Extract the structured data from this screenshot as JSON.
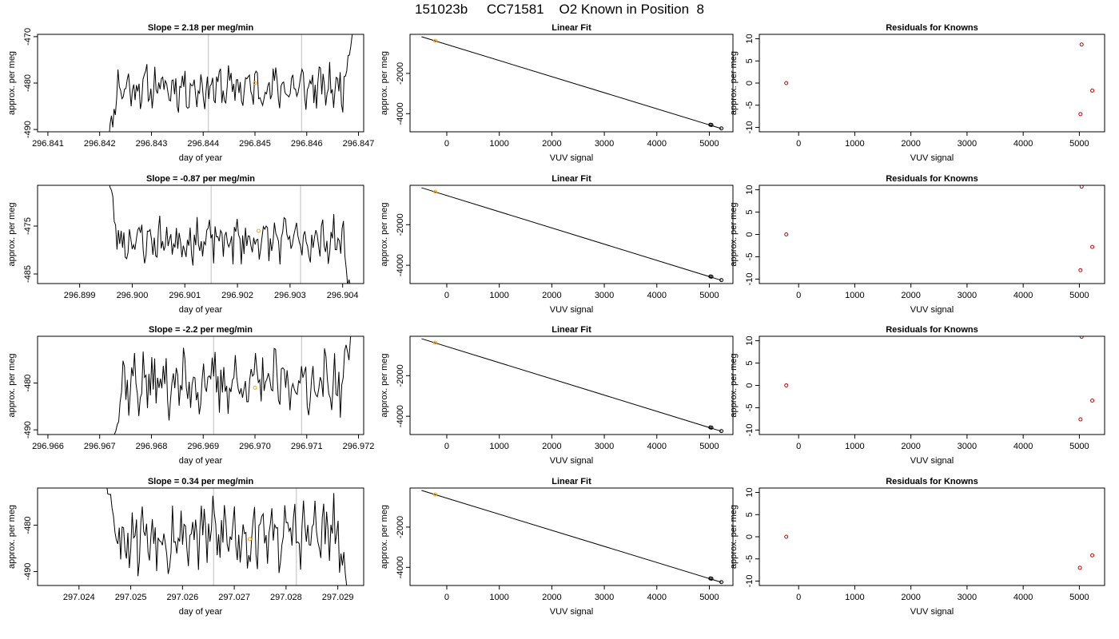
{
  "header": {
    "title": "151023b     CC71581    O2 Known in Position  8"
  },
  "chart_data": [
    {
      "type": "line",
      "title": "Slope =  2.18  per meg/min",
      "xlabel": "day of year",
      "ylabel": "approx. per meg",
      "xlim": [
        296.8408,
        296.8471
      ],
      "ylim": [
        -490.5,
        -469.5
      ],
      "xticks": [
        "296.841",
        "296.842",
        "296.843",
        "296.844",
        "296.845",
        "296.846",
        "296.847"
      ],
      "yticks": [
        "-470",
        "-480",
        "-490"
      ],
      "vlines": [
        296.8441,
        296.8459
      ],
      "marker": {
        "x": 296.845,
        "y": -480
      },
      "series_shape": {
        "x_start": 296.8421,
        "x_end": 296.8469,
        "n": 190,
        "base": -481,
        "amp": 3.5,
        "start_y": -497,
        "end_y": -468,
        "seed": 11
      },
      "colors": {
        "line": "#000000",
        "marker": "#ffa500",
        "vline": "#bebebe"
      }
    },
    {
      "type": "scatter",
      "title": "Linear Fit",
      "xlabel": "VUV signal",
      "ylabel": "approx. per meg",
      "xlim": [
        -700,
        5450
      ],
      "ylim": [
        -4900,
        -60
      ],
      "xticks": [
        "0",
        "1000",
        "2000",
        "3000",
        "4000",
        "5000"
      ],
      "yticks": [
        "-2000",
        "-4000"
      ],
      "points": [
        [
          -220,
          -380
        ],
        [
          5020,
          -4550
        ],
        [
          5040,
          -4560
        ],
        [
          5230,
          -4730
        ]
      ],
      "fit_line": [
        [
          -480,
          -180
        ],
        [
          5230,
          -4740
        ]
      ],
      "colors": {
        "line": "#000000",
        "marker": "#ffa500",
        "points": "#000000"
      }
    },
    {
      "type": "scatter",
      "title": "Residuals for Knowns",
      "xlabel": "VUV signal",
      "ylabel": "approx. per meg",
      "xlim": [
        -700,
        5450
      ],
      "ylim": [
        -11,
        11
      ],
      "xticks": [
        "0",
        "1000",
        "2000",
        "3000",
        "4000",
        "5000"
      ],
      "yticks": [
        "10",
        "5",
        "0",
        "-5",
        "-10"
      ],
      "points": [
        [
          -220,
          0
        ],
        [
          5040,
          8.7
        ],
        [
          5020,
          -7.0
        ],
        [
          5230,
          -1.7
        ]
      ],
      "colors": {
        "points": "#cc0000"
      }
    },
    {
      "type": "line",
      "title": "Slope =  -0.87  per meg/min",
      "xlabel": "day of year",
      "ylabel": "approx. per meg",
      "xlim": [
        296.8982,
        296.9044
      ],
      "ylim": [
        -487,
        -466.5
      ],
      "xticks": [
        "296.899",
        "296.900",
        "296.901",
        "296.902",
        "296.903",
        "296.904"
      ],
      "yticks": [
        "-475",
        "-485"
      ],
      "vlines": [
        296.9015,
        296.9032
      ],
      "marker": {
        "x": 296.9024,
        "y": -476
      },
      "series_shape": {
        "x_start": 296.8995,
        "x_end": 296.9042,
        "n": 180,
        "base": -478,
        "amp": 3.5,
        "start_y": -462,
        "end_y": -492,
        "seed": 23
      },
      "colors": {
        "line": "#000000",
        "marker": "#ffa500",
        "vline": "#bebebe"
      }
    },
    {
      "type": "scatter",
      "title": "Linear Fit",
      "xlabel": "VUV signal",
      "ylabel": "approx. per meg",
      "xlim": [
        -700,
        5450
      ],
      "ylim": [
        -4900,
        -60
      ],
      "xticks": [
        "0",
        "1000",
        "2000",
        "3000",
        "4000",
        "5000"
      ],
      "yticks": [
        "-2000",
        "-4000"
      ],
      "points": [
        [
          -220,
          -380
        ],
        [
          5020,
          -4550
        ],
        [
          5040,
          -4560
        ],
        [
          5230,
          -4730
        ]
      ],
      "fit_line": [
        [
          -480,
          -180
        ],
        [
          5230,
          -4740
        ]
      ],
      "colors": {
        "line": "#000000",
        "marker": "#ffa500",
        "points": "#000000"
      }
    },
    {
      "type": "scatter",
      "title": "Residuals for Knowns",
      "xlabel": "VUV signal",
      "ylabel": "approx. per meg",
      "xlim": [
        -700,
        5450
      ],
      "ylim": [
        -11,
        11
      ],
      "xticks": [
        "0",
        "1000",
        "2000",
        "3000",
        "4000",
        "5000"
      ],
      "yticks": [
        "10",
        "5",
        "0",
        "-5",
        "-10"
      ],
      "points": [
        [
          -220,
          0
        ],
        [
          5040,
          10.7
        ],
        [
          5020,
          -8.0
        ],
        [
          5230,
          -2.8
        ]
      ],
      "colors": {
        "points": "#cc0000"
      }
    },
    {
      "type": "line",
      "title": "Slope =  -2.2  per meg/min",
      "xlabel": "day of year",
      "ylabel": "approx. per meg",
      "xlim": [
        296.9658,
        296.9721
      ],
      "ylim": [
        -491,
        -470
      ],
      "xticks": [
        "296.966",
        "296.967",
        "296.968",
        "296.969",
        "296.970",
        "296.971",
        "296.972"
      ],
      "yticks": [
        "-480",
        "-490"
      ],
      "vlines": [
        296.9692,
        296.9709
      ],
      "marker": {
        "x": 296.97,
        "y": -481
      },
      "series_shape": {
        "x_start": 296.9672,
        "x_end": 296.9719,
        "n": 170,
        "base": -480,
        "amp": 5,
        "start_y": -496,
        "end_y": -466,
        "seed": 37
      },
      "colors": {
        "line": "#000000",
        "marker": "#ffa500",
        "vline": "#bebebe"
      }
    },
    {
      "type": "scatter",
      "title": "Linear Fit",
      "xlabel": "VUV signal",
      "ylabel": "approx. per meg",
      "xlim": [
        -700,
        5450
      ],
      "ylim": [
        -4900,
        -60
      ],
      "xticks": [
        "0",
        "1000",
        "2000",
        "3000",
        "4000",
        "5000"
      ],
      "yticks": [
        "-2000",
        "-4000"
      ],
      "points": [
        [
          -220,
          -380
        ],
        [
          5020,
          -4550
        ],
        [
          5040,
          -4560
        ],
        [
          5230,
          -4730
        ]
      ],
      "fit_line": [
        [
          -480,
          -180
        ],
        [
          5230,
          -4740
        ]
      ],
      "colors": {
        "line": "#000000",
        "marker": "#ffa500",
        "points": "#000000"
      }
    },
    {
      "type": "scatter",
      "title": "Residuals for Knowns",
      "xlabel": "VUV signal",
      "ylabel": "approx. per meg",
      "xlim": [
        -700,
        5450
      ],
      "ylim": [
        -11,
        11
      ],
      "xticks": [
        "0",
        "1000",
        "2000",
        "3000",
        "4000",
        "5000"
      ],
      "yticks": [
        "10",
        "5",
        "0",
        "-5",
        "-10"
      ],
      "points": [
        [
          -220,
          0
        ],
        [
          5040,
          10.9
        ],
        [
          5020,
          -7.6
        ],
        [
          5230,
          -3.4
        ]
      ],
      "colors": {
        "points": "#cc0000"
      }
    },
    {
      "type": "line",
      "title": "Slope =  0.34  per meg/min",
      "xlabel": "day of year",
      "ylabel": "approx. per meg",
      "xlim": [
        297.0232,
        297.0295
      ],
      "ylim": [
        -493,
        -472
      ],
      "xticks": [
        "297.024",
        "297.025",
        "297.026",
        "297.027",
        "297.028",
        "297.029"
      ],
      "yticks": [
        "-480",
        "-490"
      ],
      "vlines": [
        297.0266,
        297.0282
      ],
      "marker": {
        "x": 297.0273,
        "y": -483
      },
      "series_shape": {
        "x_start": 297.0245,
        "x_end": 297.0292,
        "n": 170,
        "base": -482,
        "amp": 6,
        "start_y": -468,
        "end_y": -496,
        "seed": 53
      },
      "colors": {
        "line": "#000000",
        "marker": "#ffa500",
        "vline": "#bebebe"
      }
    },
    {
      "type": "scatter",
      "title": "Linear Fit",
      "xlabel": "VUV signal",
      "ylabel": "approx. per meg",
      "xlim": [
        -700,
        5450
      ],
      "ylim": [
        -4900,
        -60
      ],
      "xticks": [
        "0",
        "1000",
        "2000",
        "3000",
        "4000",
        "5000"
      ],
      "yticks": [
        "-2000",
        "-4000"
      ],
      "points": [
        [
          -220,
          -380
        ],
        [
          5020,
          -4550
        ],
        [
          5040,
          -4560
        ],
        [
          5230,
          -4730
        ]
      ],
      "fit_line": [
        [
          -480,
          -180
        ],
        [
          5230,
          -4740
        ]
      ],
      "colors": {
        "line": "#000000",
        "marker": "#ffa500",
        "points": "#000000"
      }
    },
    {
      "type": "scatter",
      "title": "Residuals for Knowns",
      "xlabel": "VUV signal",
      "ylabel": "approx. per meg",
      "xlim": [
        -700,
        5450
      ],
      "ylim": [
        -11,
        11
      ],
      "xticks": [
        "0",
        "1000",
        "2000",
        "3000",
        "4000",
        "5000"
      ],
      "yticks": [
        "10",
        "5",
        "0",
        "-5",
        "-10"
      ],
      "points": [
        [
          -220,
          0
        ],
        [
          5010,
          -7.0
        ],
        [
          5230,
          -4.2
        ]
      ],
      "colors": {
        "points": "#cc0000"
      }
    }
  ]
}
